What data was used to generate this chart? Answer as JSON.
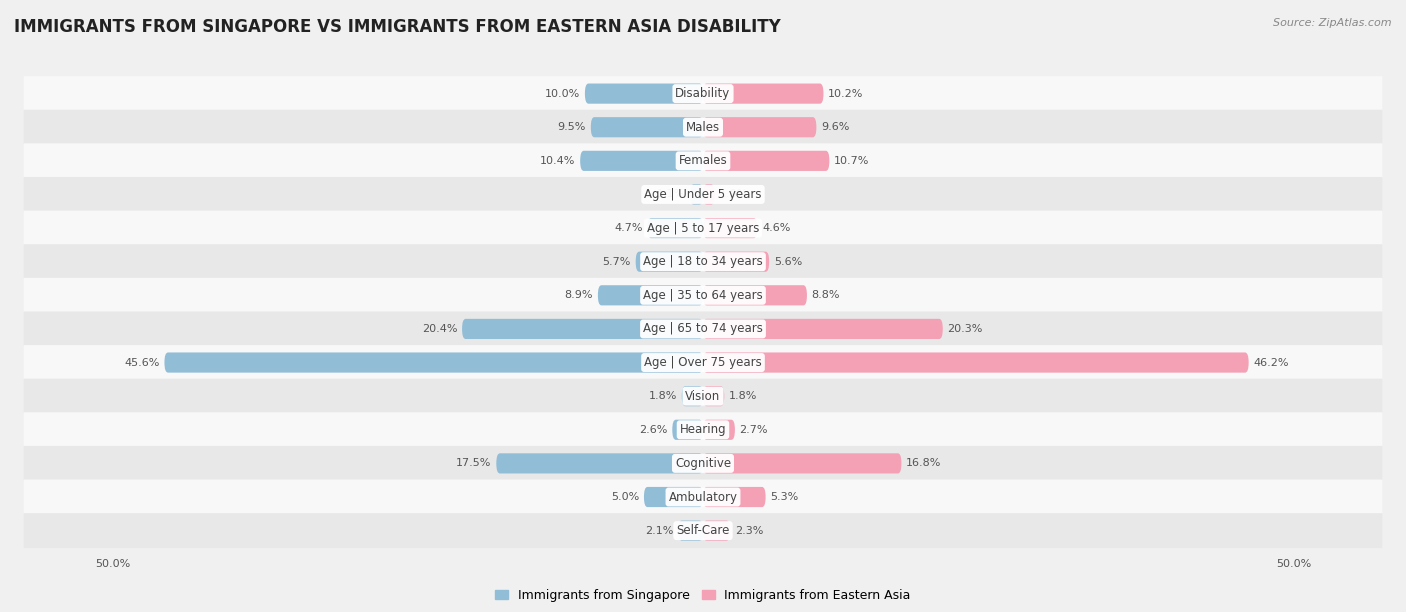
{
  "title": "IMMIGRANTS FROM SINGAPORE VS IMMIGRANTS FROM EASTERN ASIA DISABILITY",
  "source": "Source: ZipAtlas.com",
  "categories": [
    "Disability",
    "Males",
    "Females",
    "Age | Under 5 years",
    "Age | 5 to 17 years",
    "Age | 18 to 34 years",
    "Age | 35 to 64 years",
    "Age | 65 to 74 years",
    "Age | Over 75 years",
    "Vision",
    "Hearing",
    "Cognitive",
    "Ambulatory",
    "Self-Care"
  ],
  "singapore_values": [
    10.0,
    9.5,
    10.4,
    1.1,
    4.7,
    5.7,
    8.9,
    20.4,
    45.6,
    1.8,
    2.6,
    17.5,
    5.0,
    2.1
  ],
  "eastern_asia_values": [
    10.2,
    9.6,
    10.7,
    1.0,
    4.6,
    5.6,
    8.8,
    20.3,
    46.2,
    1.8,
    2.7,
    16.8,
    5.3,
    2.3
  ],
  "singapore_color": "#92bdd6",
  "eastern_asia_color": "#f4a0b5",
  "singapore_label": "Immigrants from Singapore",
  "eastern_asia_label": "Immigrants from Eastern Asia",
  "axis_max": 50.0,
  "background_color": "#f0f0f0",
  "row_color_even": "#f8f8f8",
  "row_color_odd": "#e8e8e8",
  "title_fontsize": 12,
  "label_fontsize": 8.5,
  "value_fontsize": 8,
  "legend_fontsize": 9,
  "bar_height": 0.6
}
